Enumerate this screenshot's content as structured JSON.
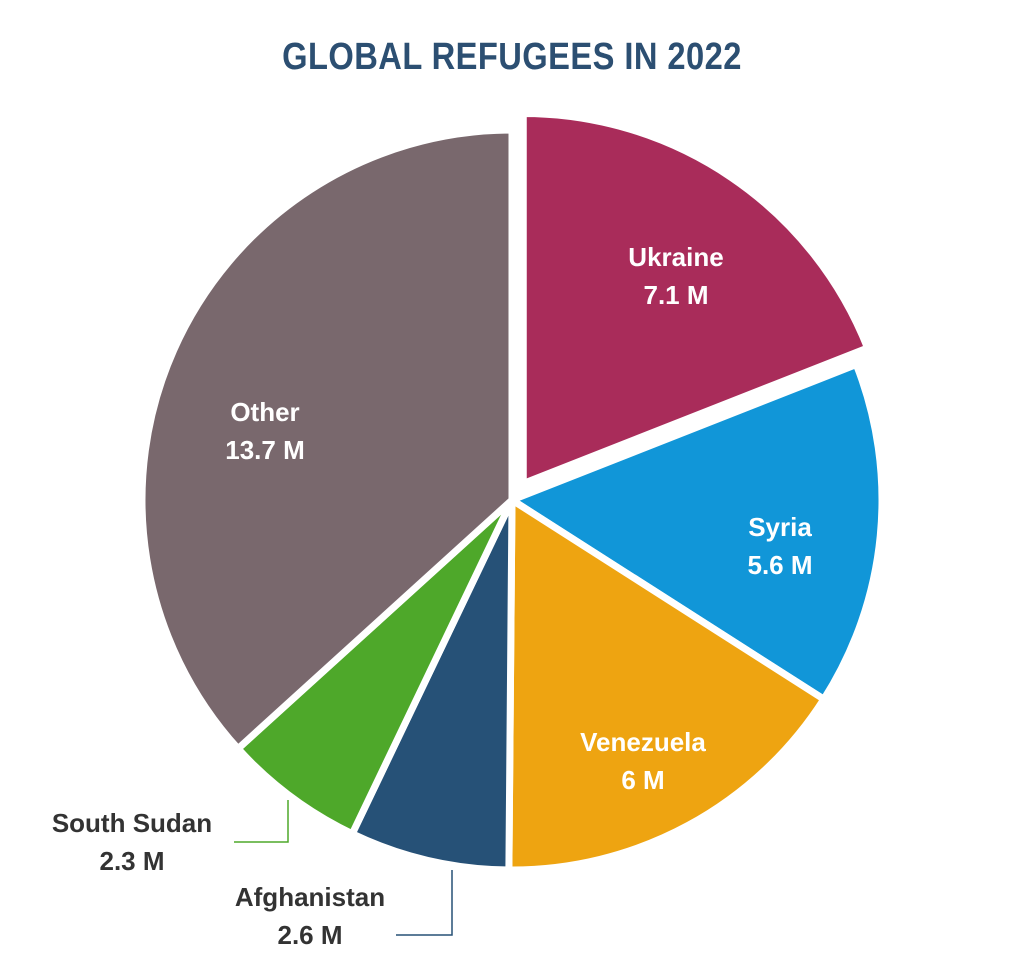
{
  "chart_data": {
    "type": "pie",
    "title": "GLOBAL REFUGEES IN 2022",
    "unit": "M",
    "slices": [
      {
        "label": "Ukraine",
        "value": 7.1,
        "value_text": "7.1 M",
        "color": "#a92c5a",
        "label_color": "#ffffff",
        "label_position": "inside",
        "exploded": true
      },
      {
        "label": "Syria",
        "value": 5.6,
        "value_text": "5.6 M",
        "color": "#1196d8",
        "label_color": "#ffffff",
        "label_position": "inside",
        "exploded": false
      },
      {
        "label": "Venezuela",
        "value": 6,
        "value_text": "6 M",
        "color": "#eea411",
        "label_color": "#ffffff",
        "label_position": "inside",
        "exploded": false
      },
      {
        "label": "Afghanistan",
        "value": 2.6,
        "value_text": "2.6 M",
        "color": "#265177",
        "label_color": "#333333",
        "label_position": "outside",
        "exploded": false
      },
      {
        "label": "South Sudan",
        "value": 2.3,
        "value_text": "2.3 M",
        "color": "#4ea82a",
        "label_color": "#333333",
        "label_position": "outside",
        "exploded": false
      },
      {
        "label": "Other",
        "value": 13.7,
        "value_text": "13.7 M",
        "color": "#79686d",
        "label_color": "#ffffff",
        "label_position": "inside",
        "exploded": false
      }
    ],
    "legend": "none"
  },
  "colors": {
    "title": "#2c4f72",
    "background": "#ffffff",
    "separator": "#ffffff"
  }
}
